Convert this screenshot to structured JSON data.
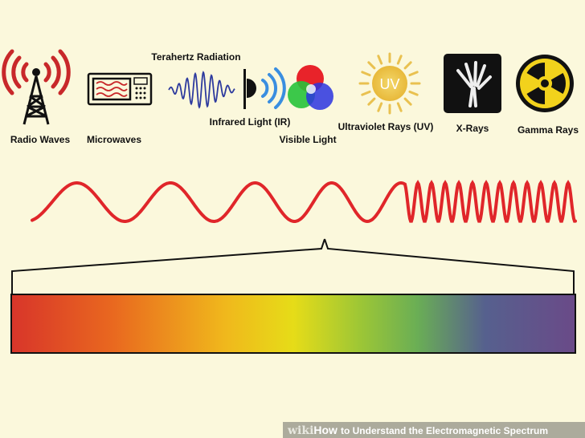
{
  "labels": [
    "Terahertz Radiation",
    "Radio Waves",
    "Microwaves",
    "Infrared Light (IR)",
    "Visible Light",
    "Ultraviolet Rays (UV)",
    "X-Rays",
    "Gamma Rays",
    "UV"
  ],
  "watermark": {
    "brand_light": "wiki",
    "brand_bold": "How",
    "title": "to Understand the Electromagnetic Spectrum"
  }
}
